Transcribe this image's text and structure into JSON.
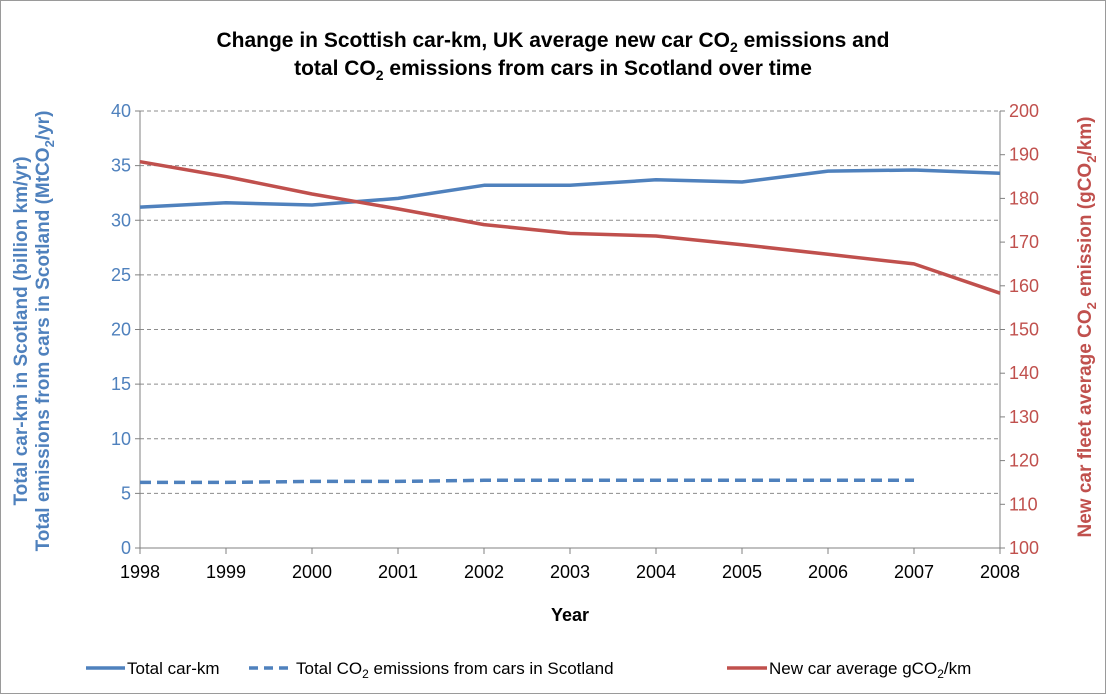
{
  "chart_data": {
    "type": "line",
    "title": {
      "line1_pre": "Change in Scottish car-km, UK average new car CO",
      "line1_sub": "2",
      "line1_post": " emissions and",
      "line2_pre": "total CO",
      "line2_sub": "2",
      "line2_post": " emissions from cars in Scotland over time"
    },
    "xlabel": "Year",
    "ylabel_left": {
      "line1": "Total car-km in Scotland (billion km/yr)",
      "line2_pre": "Total emissions from cars in Scotland (MtCO",
      "line2_sub": "2",
      "line2_post": "/yr)"
    },
    "ylabel_right": {
      "pre": "New car fleet average CO",
      "sub1": "2",
      "mid": " emission (gCO",
      "sub2": "2",
      "post": "/km)"
    },
    "x": [
      1998,
      1999,
      2000,
      2001,
      2002,
      2003,
      2004,
      2005,
      2006,
      2007,
      2008
    ],
    "x_tick_labels": [
      "1998",
      "1999",
      "2000",
      "2001",
      "2002",
      "2003",
      "2004",
      "2005",
      "2006",
      "2007",
      "2008"
    ],
    "ylim_left": [
      0,
      40
    ],
    "yticks_left": [
      "0",
      "5",
      "10",
      "15",
      "20",
      "25",
      "30",
      "35",
      "40"
    ],
    "ylim_right": [
      100,
      200
    ],
    "yticks_right": [
      "100",
      "110",
      "120",
      "130",
      "140",
      "150",
      "160",
      "170",
      "180",
      "190",
      "200"
    ],
    "grid": true,
    "legend_position": "bottom",
    "series": [
      {
        "key": "carkm",
        "axis": "left",
        "color": "#4f81bd",
        "dash": "solid",
        "legend_pre": "Total car-km",
        "legend_sub": "",
        "legend_post": "",
        "values": [
          31.2,
          31.6,
          31.4,
          32.0,
          33.2,
          33.2,
          33.7,
          33.5,
          34.5,
          34.6,
          34.3
        ]
      },
      {
        "key": "emissions",
        "axis": "left",
        "color": "#4f81bd",
        "dash": "dashed",
        "legend_pre": "Total CO",
        "legend_sub": "2",
        "legend_post": " emissions from cars in Scotland",
        "values": [
          6.0,
          6.0,
          6.1,
          6.1,
          6.2,
          6.2,
          6.2,
          6.2,
          6.2,
          6.2,
          null
        ]
      },
      {
        "key": "newcar",
        "axis": "right",
        "color": "#c0504d",
        "dash": "solid",
        "legend_pre": "New car average gCO",
        "legend_sub": "2",
        "legend_post": "/km",
        "values": [
          188.4,
          185.0,
          181.0,
          177.6,
          174.0,
          172.0,
          171.4,
          169.4,
          167.2,
          165.0,
          158.3
        ]
      }
    ]
  }
}
